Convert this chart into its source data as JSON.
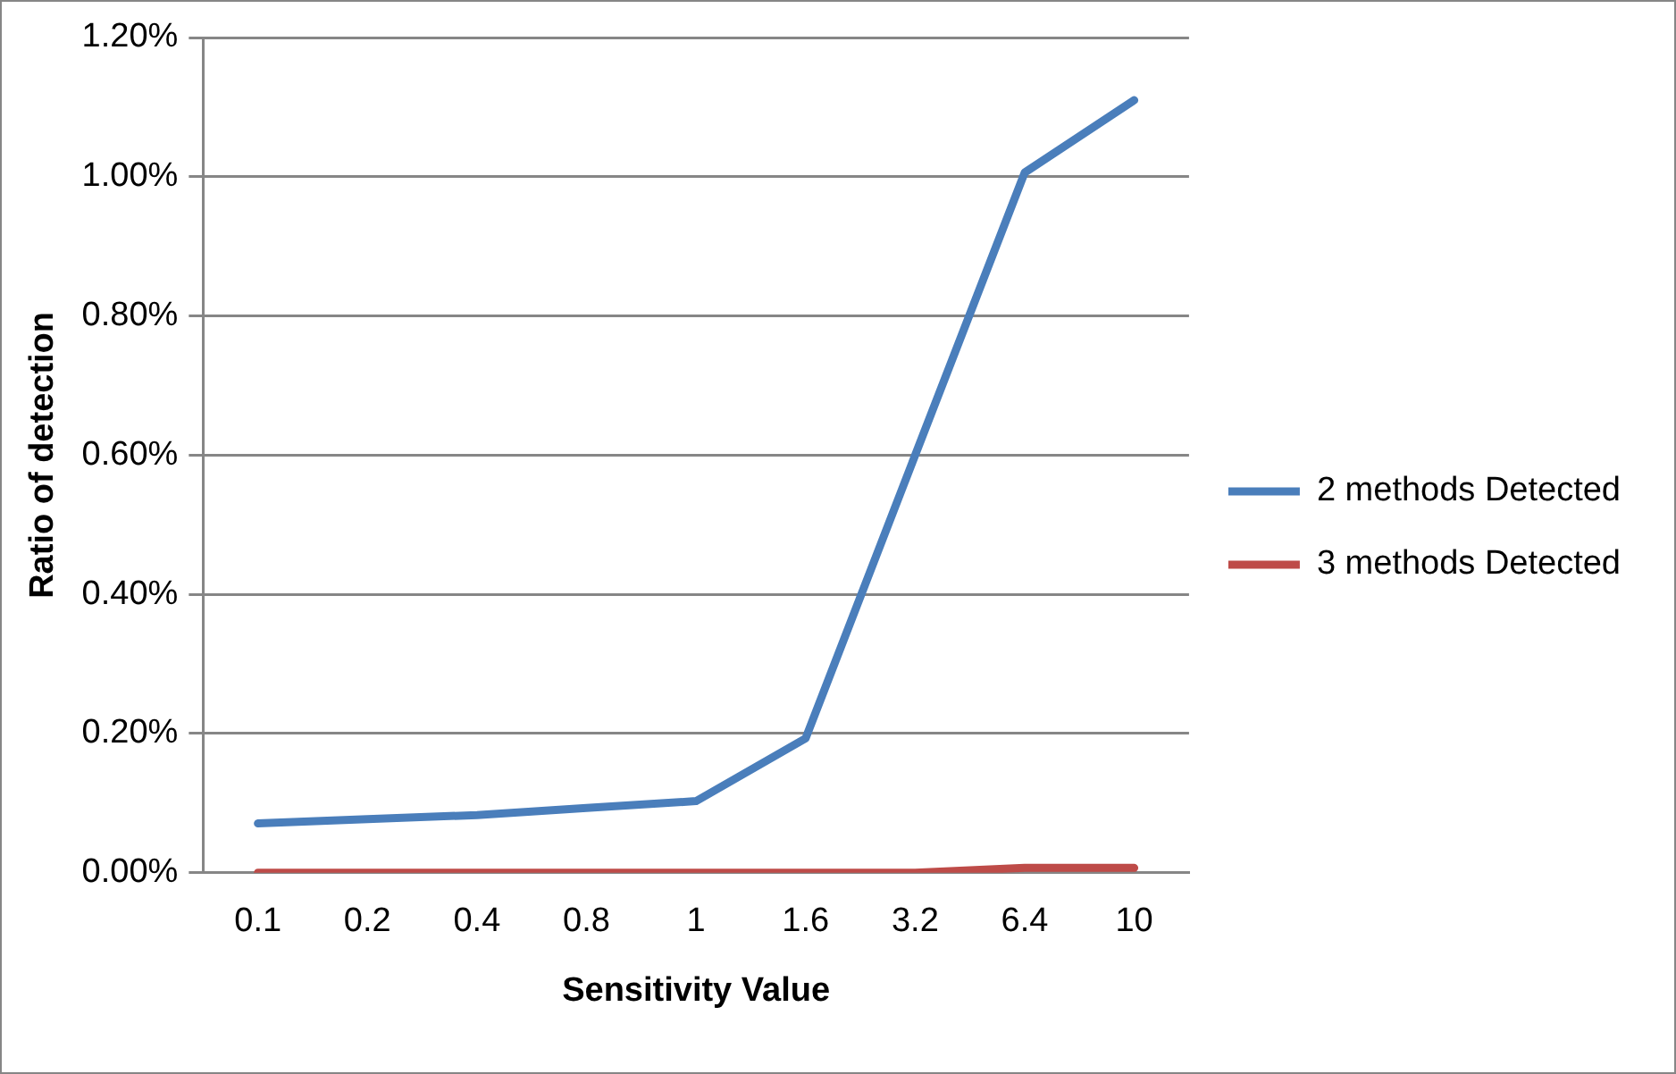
{
  "chart_data": {
    "type": "line",
    "xlabel": "Sensitivity Value",
    "ylabel": "Ratio of detection",
    "categories": [
      "0.1",
      "0.2",
      "0.4",
      "0.8",
      "1",
      "1.6",
      "3.2",
      "6.4",
      "10"
    ],
    "series": [
      {
        "name": "2 methods Detected",
        "color": "#4a7ebb",
        "values": [
          0.071,
          0.077,
          0.083,
          0.093,
          0.103,
          0.193,
          0.6,
          1.006,
          1.11
        ]
      },
      {
        "name": "3 methods Detected",
        "color": "#be4b48",
        "values": [
          0,
          0,
          0,
          0,
          0,
          0,
          0,
          0.007,
          0.007
        ]
      }
    ],
    "ylim": [
      0,
      1.2
    ],
    "yticks": [
      {
        "value": 0,
        "label": "0.00%"
      },
      {
        "value": 0.2,
        "label": "0.20%"
      },
      {
        "value": 0.4,
        "label": "0.40%"
      },
      {
        "value": 0.6,
        "label": "0.60%"
      },
      {
        "value": 0.8,
        "label": "0.80%"
      },
      {
        "value": 1,
        "label": "1.00%"
      },
      {
        "value": 1.2,
        "label": "1.20%"
      }
    ],
    "grid": "y",
    "legend": "right",
    "marker": "none",
    "line_style": "solid"
  }
}
